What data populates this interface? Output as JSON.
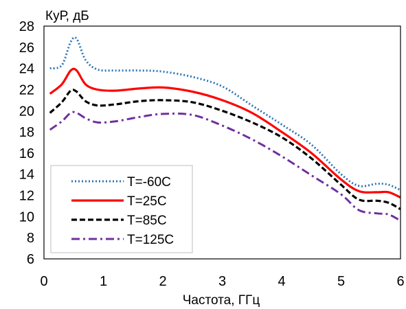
{
  "chart_data": {
    "type": "line",
    "xlabel": "Частота, ГГц",
    "ylabel": "КуР, дБ",
    "xlim": [
      0,
      6
    ],
    "ylim": [
      6,
      28
    ],
    "xticks": [
      "0",
      "1",
      "2",
      "3",
      "4",
      "5",
      "6"
    ],
    "yticks": [
      "6",
      "8",
      "10",
      "12",
      "14",
      "16",
      "18",
      "20",
      "22",
      "24",
      "26",
      "28"
    ],
    "grid": false,
    "legend_position": "bottom-left",
    "series": [
      {
        "name": "T=-60C",
        "color": "#2E75B6",
        "dash": "dotted",
        "x": [
          0.1,
          0.3,
          0.45,
          0.55,
          0.7,
          0.9,
          1.2,
          1.6,
          2.0,
          2.5,
          3.0,
          3.5,
          4.0,
          4.5,
          5.0,
          5.3,
          5.6,
          5.8,
          6.0
        ],
        "y": [
          24.0,
          24.3,
          26.5,
          26.8,
          24.8,
          23.9,
          23.8,
          23.8,
          23.7,
          23.2,
          22.3,
          20.5,
          18.7,
          16.8,
          14.0,
          12.9,
          13.1,
          13.0,
          12.5
        ]
      },
      {
        "name": "T=25C",
        "color": "#FF0000",
        "dash": "solid",
        "x": [
          0.1,
          0.3,
          0.45,
          0.55,
          0.7,
          0.9,
          1.2,
          1.6,
          2.0,
          2.5,
          3.0,
          3.5,
          4.0,
          4.5,
          5.0,
          5.3,
          5.6,
          5.8,
          6.0
        ],
        "y": [
          21.6,
          22.5,
          23.8,
          23.8,
          22.5,
          22.0,
          21.9,
          22.1,
          22.2,
          21.8,
          21.0,
          19.8,
          18.0,
          16.0,
          13.5,
          12.4,
          12.3,
          12.3,
          11.8
        ]
      },
      {
        "name": "T=85C",
        "color": "#000000",
        "dash": "dashed",
        "x": [
          0.1,
          0.3,
          0.45,
          0.55,
          0.7,
          0.9,
          1.2,
          1.6,
          2.0,
          2.5,
          3.0,
          3.5,
          4.0,
          4.5,
          5.0,
          5.3,
          5.6,
          5.8,
          6.0
        ],
        "y": [
          19.8,
          20.8,
          21.9,
          21.8,
          20.9,
          20.5,
          20.6,
          20.9,
          21.0,
          20.8,
          20.0,
          18.9,
          17.5,
          15.5,
          13.0,
          11.6,
          11.5,
          11.3,
          10.7
        ]
      },
      {
        "name": "T=125C",
        "color": "#7030A0",
        "dash": "dashdot",
        "x": [
          0.1,
          0.3,
          0.45,
          0.55,
          0.7,
          0.9,
          1.2,
          1.6,
          2.0,
          2.5,
          3.0,
          3.5,
          4.0,
          4.5,
          5.0,
          5.3,
          5.6,
          5.8,
          6.0
        ],
        "y": [
          18.2,
          19.0,
          19.8,
          19.8,
          19.3,
          18.9,
          19.0,
          19.4,
          19.7,
          19.6,
          18.6,
          17.3,
          15.7,
          13.9,
          12.1,
          10.6,
          10.3,
          10.2,
          9.6
        ]
      }
    ]
  }
}
